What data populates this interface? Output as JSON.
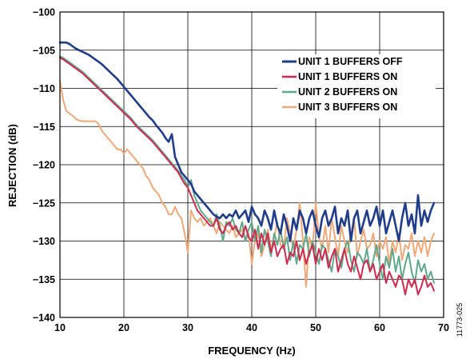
{
  "figure_id": "11773-025",
  "chart_data": {
    "type": "line",
    "title": "",
    "xlabel": "FREQUENCY (Hz)",
    "ylabel": "REJECTION (dB)",
    "xlim": [
      10,
      70
    ],
    "ylim": [
      -140,
      -100
    ],
    "x_ticks": [
      10,
      20,
      30,
      40,
      50,
      60,
      70
    ],
    "y_ticks": [
      -100,
      -105,
      -110,
      -115,
      -120,
      -125,
      -130,
      -135,
      -140
    ],
    "grid": true,
    "legend_position": "top-right",
    "series": [
      {
        "name": "UNIT 1 BUFFERS OFF",
        "color": "#1f3d8c",
        "x": [
          10,
          10.5,
          11,
          11.5,
          12,
          12.5,
          13,
          13.5,
          14,
          14.5,
          15,
          15.5,
          16,
          16.5,
          17,
          17.5,
          18,
          18.5,
          19,
          19.5,
          20,
          20.5,
          21,
          21.5,
          22,
          22.5,
          23,
          23.5,
          24,
          24.5,
          25,
          25.5,
          26,
          26.5,
          27,
          27.5,
          28,
          28.5,
          29,
          29.5,
          30,
          30.5,
          31,
          31.5,
          32,
          32.5,
          33,
          33.5,
          34,
          34.5,
          35,
          35.5,
          36,
          36.5,
          37,
          37.5,
          38,
          38.5,
          39,
          39.5,
          40,
          40.5,
          41,
          41.5,
          42,
          42.5,
          43,
          43.5,
          44,
          44.5,
          45,
          45.5,
          46,
          46.5,
          47,
          47.5,
          48,
          48.5,
          49,
          49.5,
          50,
          50.5,
          51,
          51.5,
          52,
          52.5,
          53,
          53.5,
          54,
          54.5,
          55,
          55.5,
          56,
          56.5,
          57,
          57.5,
          58,
          58.5,
          59,
          59.5,
          60,
          60.5,
          61,
          61.5,
          62,
          62.5,
          63,
          63.5,
          64,
          64.5,
          65,
          65.5,
          66,
          66.5,
          67,
          67.5,
          68,
          68.5
        ],
        "y": [
          -104,
          -104,
          -104,
          -104.2,
          -104.5,
          -104.8,
          -105,
          -105.2,
          -105.4,
          -105.6,
          -105.9,
          -106.2,
          -106.5,
          -106.8,
          -107.2,
          -107.6,
          -108,
          -108.4,
          -108.8,
          -109.3,
          -109.8,
          -110.3,
          -110.8,
          -111.3,
          -111.8,
          -112.3,
          -112.8,
          -113.3,
          -113.8,
          -114.2,
          -114.8,
          -115.3,
          -115.8,
          -116.5,
          -117,
          -116,
          -119,
          -120,
          -121,
          -121.5,
          -122,
          -122.5,
          -123.5,
          -124,
          -124.5,
          -125,
          -125.5,
          -126,
          -126.5,
          -126.8,
          -127,
          -126.5,
          -127,
          -126.5,
          -126.8,
          -126,
          -127,
          -126.5,
          -126,
          -127.5,
          -125.5,
          -126.5,
          -127,
          -128,
          -126,
          -127,
          -128.5,
          -126,
          -128,
          -129,
          -126.5,
          -128,
          -130,
          -127,
          -128.5,
          -126,
          -127,
          -129,
          -127,
          -126,
          -128,
          -129.5,
          -127,
          -126,
          -128,
          -127,
          -125.5,
          -129,
          -127,
          -128,
          -126,
          -130,
          -127,
          -126,
          -129,
          -127.5,
          -126,
          -128,
          -127,
          -125.5,
          -128,
          -126,
          -129,
          -127.5,
          -126,
          -128,
          -130,
          -127,
          -125,
          -128,
          -126.5,
          -129,
          -124,
          -128,
          -126,
          -127.5,
          -126,
          -125
        ]
      },
      {
        "name": "UNIT 1 BUFFERS ON",
        "color": "#d12a4e",
        "x": [
          10,
          10.5,
          11,
          11.5,
          12,
          12.5,
          13,
          13.5,
          14,
          14.5,
          15,
          15.5,
          16,
          16.5,
          17,
          17.5,
          18,
          18.5,
          19,
          19.5,
          20,
          20.5,
          21,
          21.5,
          22,
          22.5,
          23,
          23.5,
          24,
          24.5,
          25,
          25.5,
          26,
          26.5,
          27,
          27.5,
          28,
          28.5,
          29,
          29.5,
          30,
          30.5,
          31,
          31.5,
          32,
          32.5,
          33,
          33.5,
          34,
          34.5,
          35,
          35.5,
          36,
          36.5,
          37,
          37.5,
          38,
          38.5,
          39,
          39.5,
          40,
          40.5,
          41,
          41.5,
          42,
          42.5,
          43,
          43.5,
          44,
          44.5,
          45,
          45.5,
          46,
          46.5,
          47,
          47.5,
          48,
          48.5,
          49,
          49.5,
          50,
          50.5,
          51,
          51.5,
          52,
          52.5,
          53,
          53.5,
          54,
          54.5,
          55,
          55.5,
          56,
          56.5,
          57,
          57.5,
          58,
          58.5,
          59,
          59.5,
          60,
          60.5,
          61,
          61.5,
          62,
          62.5,
          63,
          63.5,
          64,
          64.5,
          65,
          65.5,
          66,
          66.5,
          67,
          67.5,
          68,
          68.5
        ],
        "y": [
          -106,
          -106.2,
          -106.5,
          -106.8,
          -107.1,
          -107.4,
          -107.7,
          -108,
          -108.4,
          -108.8,
          -109.2,
          -109.6,
          -110,
          -110.4,
          -110.8,
          -111.2,
          -111.6,
          -112,
          -112.4,
          -112.8,
          -113.2,
          -113.6,
          -114,
          -114.5,
          -115,
          -115.4,
          -115.8,
          -116.2,
          -116.6,
          -117,
          -117.5,
          -118,
          -118.5,
          -119,
          -119.5,
          -120,
          -120.5,
          -121,
          -121.8,
          -122.5,
          -123,
          -124,
          -125,
          -126,
          -126.5,
          -127,
          -127.5,
          -128,
          -128,
          -127,
          -128.5,
          -129,
          -128,
          -127.5,
          -128.5,
          -128,
          -129,
          -129.5,
          -128,
          -129.5,
          -130,
          -128.5,
          -131,
          -129,
          -130.5,
          -129,
          -131.5,
          -130,
          -132,
          -131,
          -130.5,
          -133,
          -131.5,
          -132,
          -130,
          -132.5,
          -131,
          -133,
          -131.5,
          -130.5,
          -133,
          -131,
          -132.5,
          -131,
          -133.5,
          -132,
          -131,
          -134,
          -132.5,
          -131,
          -133,
          -134,
          -132,
          -133.5,
          -135,
          -133,
          -132.5,
          -134,
          -133,
          -135,
          -134,
          -133,
          -135.5,
          -134,
          -135,
          -136,
          -134.5,
          -135,
          -137,
          -135,
          -136,
          -135,
          -137,
          -136,
          -134.5,
          -136,
          -135.5,
          -136.5
        ]
      },
      {
        "name": "UNIT 2 BUFFERS ON",
        "color": "#5fa98a",
        "x": [
          10,
          10.5,
          11,
          11.5,
          12,
          12.5,
          13,
          13.5,
          14,
          14.5,
          15,
          15.5,
          16,
          16.5,
          17,
          17.5,
          18,
          18.5,
          19,
          19.5,
          20,
          20.5,
          21,
          21.5,
          22,
          22.5,
          23,
          23.5,
          24,
          24.5,
          25,
          25.5,
          26,
          26.5,
          27,
          27.5,
          28,
          28.5,
          29,
          29.5,
          30,
          30.5,
          31,
          31.5,
          32,
          32.5,
          33,
          33.5,
          34,
          34.5,
          35,
          35.5,
          36,
          36.5,
          37,
          37.5,
          38,
          38.5,
          39,
          39.5,
          40,
          40.5,
          41,
          41.5,
          42,
          42.5,
          43,
          43.5,
          44,
          44.5,
          45,
          45.5,
          46,
          46.5,
          47,
          47.5,
          48,
          48.5,
          49,
          49.5,
          50,
          50.5,
          51,
          51.5,
          52,
          52.5,
          53,
          53.5,
          54,
          54.5,
          55,
          55.5,
          56,
          56.5,
          57,
          57.5,
          58,
          58.5,
          59,
          59.5,
          60,
          60.5,
          61,
          61.5,
          62,
          62.5,
          63,
          63.5,
          64,
          64.5,
          65,
          65.5,
          66,
          66.5,
          67,
          67.5,
          68,
          68.5
        ],
        "y": [
          -105.8,
          -106,
          -106.3,
          -106.6,
          -106.9,
          -107.2,
          -107.5,
          -107.8,
          -108.2,
          -108.6,
          -109,
          -109.4,
          -109.8,
          -110.2,
          -110.6,
          -111,
          -111.4,
          -111.8,
          -112.2,
          -112.6,
          -113,
          -113.4,
          -113.8,
          -114.3,
          -114.8,
          -115.2,
          -115.6,
          -116,
          -116.4,
          -116.8,
          -117.3,
          -117.8,
          -118.3,
          -118.8,
          -119.3,
          -119.8,
          -120.3,
          -120.8,
          -121.5,
          -122,
          -123,
          -122,
          -124,
          -125,
          -126,
          -126.5,
          -127,
          -127.5,
          -128,
          -126.5,
          -128,
          -130,
          -127.5,
          -128,
          -127,
          -128.5,
          -129,
          -127.5,
          -130,
          -128.5,
          -127.5,
          -130,
          -128,
          -131.5,
          -128.5,
          -130,
          -132,
          -129,
          -130.5,
          -128.5,
          -131,
          -129.5,
          -132.5,
          -130,
          -133,
          -130.5,
          -131,
          -129,
          -132,
          -130,
          -131.5,
          -133,
          -130.5,
          -131,
          -132.5,
          -134,
          -131,
          -132,
          -133.5,
          -131,
          -130,
          -132.5,
          -134,
          -131.5,
          -132,
          -133,
          -131,
          -134,
          -132.5,
          -130.5,
          -133,
          -135,
          -132,
          -133.5,
          -131,
          -134,
          -132,
          -135,
          -133,
          -131.5,
          -134,
          -135.5,
          -132.5,
          -134,
          -133,
          -135,
          -134,
          -135.5
        ]
      },
      {
        "name": "UNIT 3 BUFFERS ON",
        "color": "#f3a878",
        "x": [
          10,
          10.5,
          11,
          11.5,
          12,
          12.5,
          13,
          13.5,
          14,
          14.5,
          15,
          15.5,
          16,
          16.5,
          17,
          17.5,
          18,
          18.5,
          19,
          19.5,
          20,
          20.5,
          21,
          21.5,
          22,
          22.5,
          23,
          23.5,
          24,
          24.5,
          25,
          25.5,
          26,
          26.5,
          27,
          27.5,
          28,
          28.5,
          29,
          29.5,
          30,
          30.5,
          31,
          31.5,
          32,
          32.5,
          33,
          33.5,
          34,
          34.5,
          35,
          35.5,
          36,
          36.5,
          37,
          37.5,
          38,
          38.5,
          39,
          39.5,
          40,
          40.5,
          41,
          41.5,
          42,
          42.5,
          43,
          43.5,
          44,
          44.5,
          45,
          45.5,
          46,
          46.5,
          47,
          47.5,
          48,
          48.5,
          49,
          49.5,
          50,
          50.5,
          51,
          51.5,
          52,
          52.5,
          53,
          53.5,
          54,
          54.5,
          55,
          55.5,
          56,
          56.5,
          57,
          57.5,
          58,
          58.5,
          59,
          59.5,
          60,
          60.5,
          61,
          61.5,
          62,
          62.5,
          63,
          63.5,
          64,
          64.5,
          65,
          65.5,
          66,
          66.5,
          67,
          67.5,
          68,
          68.5
        ],
        "y": [
          -109,
          -111.5,
          -113,
          -113.3,
          -113.6,
          -114,
          -114.2,
          -114.3,
          -114.3,
          -114.3,
          -114.3,
          -114.3,
          -114.6,
          -115.5,
          -116,
          -116.5,
          -117,
          -117.5,
          -118,
          -118,
          -118.5,
          -118,
          -118.5,
          -119,
          -119.5,
          -120,
          -120.5,
          -121.5,
          -122,
          -123,
          -123.5,
          -124,
          -125,
          -125.5,
          -126.5,
          -126.5,
          -125.5,
          -126.5,
          -127,
          -129,
          -131.5,
          -126,
          -127,
          -127.5,
          -127,
          -128,
          -127.5,
          -127,
          -128,
          -129,
          -127.5,
          -128,
          -128.5,
          -129,
          -128,
          -129.5,
          -129,
          -128.5,
          -130,
          -129,
          -133,
          -130,
          -129,
          -132,
          -130.5,
          -128.5,
          -131,
          -129.5,
          -127.5,
          -130.5,
          -131,
          -127,
          -129,
          -131,
          -128.5,
          -125,
          -130,
          -136,
          -129.5,
          -131,
          -125,
          -129.5,
          -131,
          -128,
          -131.5,
          -127,
          -129.5,
          -132,
          -128,
          -130,
          -131.5,
          -129,
          -127,
          -132,
          -130,
          -128.5,
          -131,
          -130.5,
          -129,
          -132,
          -130,
          -131,
          -129.5,
          -133,
          -130,
          -131.5,
          -129,
          -132.5,
          -130.5,
          -131,
          -129,
          -132,
          -130,
          -131.5,
          -129.5,
          -132,
          -130,
          -129
        ]
      }
    ]
  }
}
